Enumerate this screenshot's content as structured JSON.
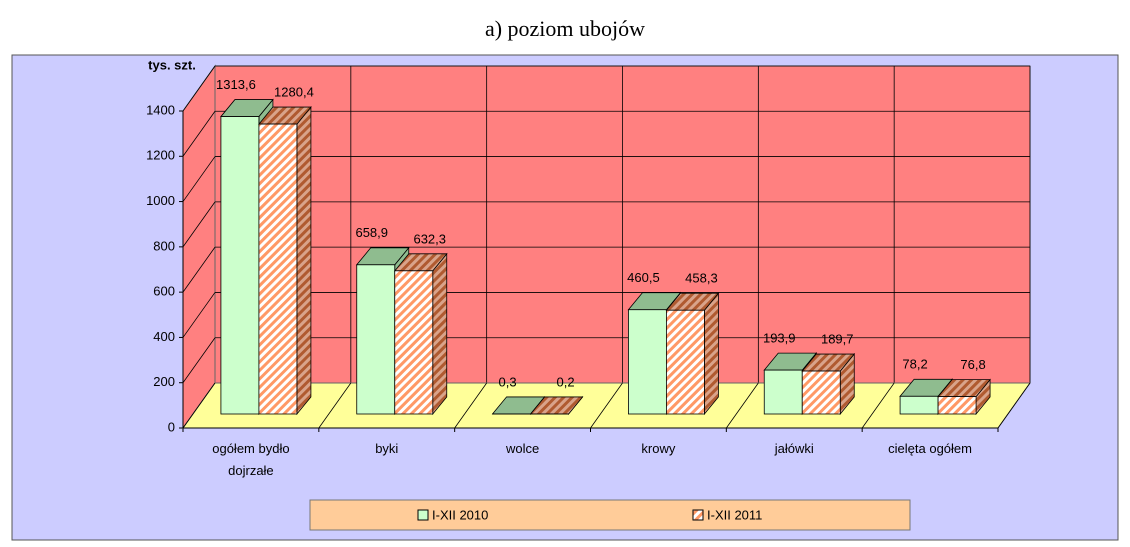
{
  "chart_data": {
    "type": "bar3d",
    "title": "a) poziom ubojów",
    "y_axis_label": "tys. szt.",
    "categories": [
      "ogółem bydło dojrzałe",
      "byki",
      "wolce",
      "krowy",
      "jałówki",
      "cielęta ogółem"
    ],
    "series": [
      {
        "name": "I-XII 2010",
        "color": "#ccffcc",
        "values": [
          1313.6,
          658.9,
          0.3,
          460.5,
          193.9,
          78.2
        ],
        "value_labels": [
          "1313,6",
          "658,9",
          "0,3",
          "460,5",
          "193,9",
          "78,2"
        ]
      },
      {
        "name": "I-XII 2011",
        "color": "#ff9966",
        "values": [
          1280.4,
          632.3,
          0.2,
          458.3,
          189.7,
          76.8
        ],
        "value_labels": [
          "1280,4",
          "632,3",
          "0,2",
          "458,3",
          "189,7",
          "76,8"
        ]
      }
    ],
    "ylim": [
      0,
      1400
    ],
    "yticks": [
      0,
      200,
      400,
      600,
      800,
      1000,
      1200,
      1400
    ],
    "grid": true,
    "legend": "bottom"
  }
}
